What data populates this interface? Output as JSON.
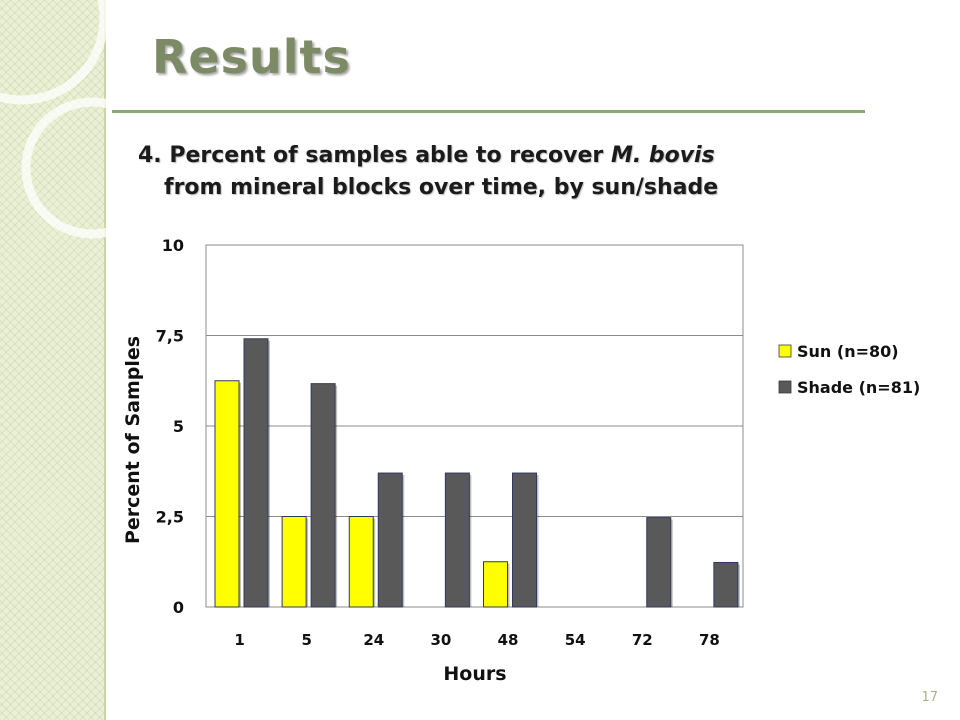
{
  "slide": {
    "title": "Results",
    "subtitle_number": "4.",
    "subtitle_prefix": "Percent of samples able to recover",
    "subtitle_italic": "M. bovis",
    "subtitle_line2": "from mineral blocks over time, by sun/shade",
    "page_number": "17"
  },
  "colors": {
    "sun": "#ffff00",
    "shade": "#595959",
    "title": "#7c8a66",
    "rule": "#8aa873",
    "band": "#eaf0d6"
  },
  "chart_data": {
    "type": "bar",
    "title": "",
    "xlabel": "Hours",
    "ylabel": "Percent of Samples",
    "categories": [
      "1",
      "5",
      "24",
      "30",
      "48",
      "54",
      "72",
      "78"
    ],
    "series": [
      {
        "name": "Sun (n=80)",
        "values": [
          6.25,
          2.5,
          2.5,
          0,
          1.25,
          0,
          0,
          0
        ]
      },
      {
        "name": "Shade (n=81)",
        "values": [
          7.41,
          6.17,
          3.7,
          3.7,
          3.7,
          0,
          2.47,
          1.23
        ]
      }
    ],
    "ylim": [
      0,
      10
    ],
    "yticks": [
      "0",
      "2,5",
      "5",
      "7,5",
      "10"
    ],
    "grid": true,
    "legend": "right"
  }
}
